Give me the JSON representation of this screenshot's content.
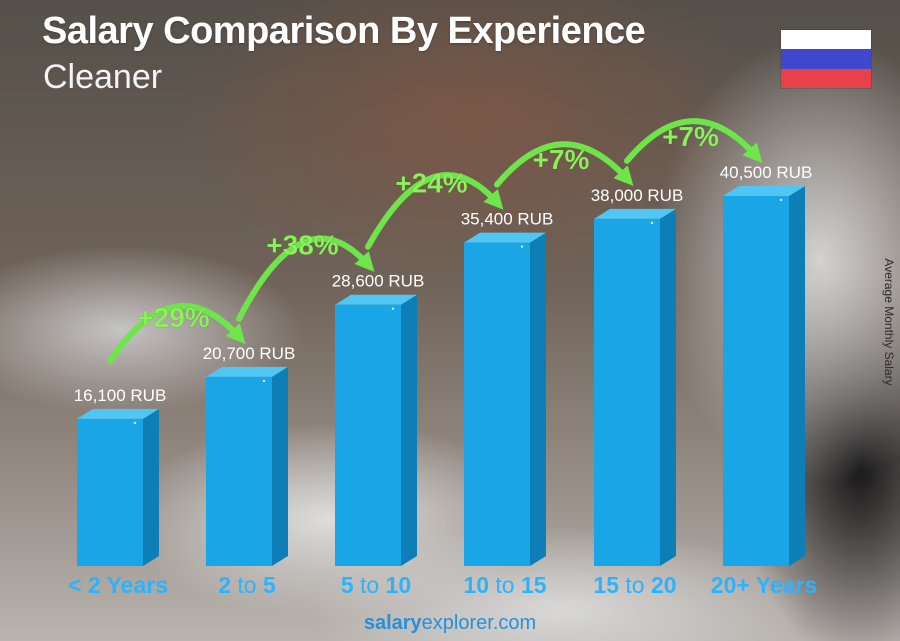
{
  "header": {
    "title": "Salary Comparison By Experience",
    "subtitle": "Cleaner"
  },
  "side_label": "Average Monthly Salary",
  "footer": {
    "brand": "salary",
    "brand_rest": "explorer",
    "tld": ".com"
  },
  "flag": {
    "colors": [
      "#ffffff",
      "#3f48cc",
      "#e8414b"
    ]
  },
  "colors": {
    "bar_front": "#1aa6e6",
    "bar_side": "#0d7fb6",
    "bar_top": "#4fc6f4",
    "arrow": "#6ee54a",
    "pct_text": "#8bf35a",
    "category_text": "#2ab4ff"
  },
  "chart_data": {
    "type": "bar",
    "title": "Salary Comparison By Experience",
    "subtitle": "Cleaner",
    "ylabel": "Average Monthly Salary",
    "unit": "RUB",
    "categories": [
      "< 2 Years",
      "2 to 5",
      "5 to 10",
      "10 to 15",
      "15 to 20",
      "20+ Years"
    ],
    "category_parts": [
      [
        [
          "< 2 Years",
          true
        ]
      ],
      [
        [
          "2",
          true
        ],
        [
          " to ",
          false
        ],
        [
          "5",
          true
        ]
      ],
      [
        [
          "5",
          true
        ],
        [
          " to ",
          false
        ],
        [
          "10",
          true
        ]
      ],
      [
        [
          "10",
          true
        ],
        [
          " to ",
          false
        ],
        [
          "15",
          true
        ]
      ],
      [
        [
          "15",
          true
        ],
        [
          " to ",
          false
        ],
        [
          "20",
          true
        ]
      ],
      [
        [
          "20+ Years",
          true
        ]
      ]
    ],
    "values": [
      16100,
      20700,
      28600,
      35400,
      38000,
      40500
    ],
    "value_labels": [
      "16,100 RUB",
      "20,700 RUB",
      "28,600 RUB",
      "35,400 RUB",
      "38,000 RUB",
      "40,500 RUB"
    ],
    "changes": [
      "+29%",
      "+38%",
      "+24%",
      "+7%",
      "+7%"
    ]
  }
}
